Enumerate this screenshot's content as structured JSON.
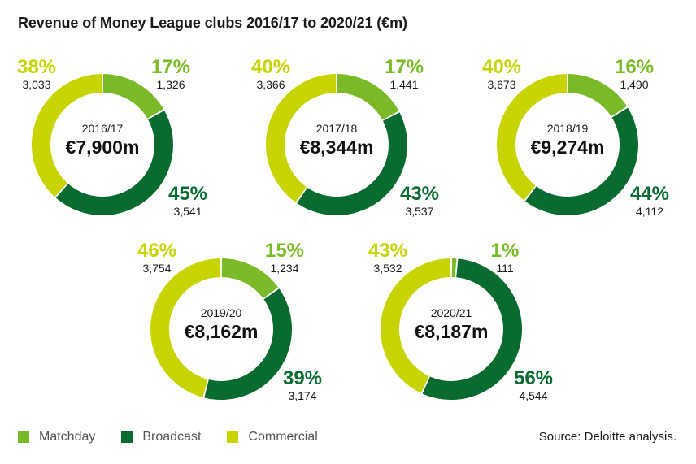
{
  "title": "Revenue of Money League clubs 2016/17 to 2020/21 (€m)",
  "colors": {
    "matchday": "#7aba28",
    "broadcast": "#0a6b31",
    "commercial": "#c8d400"
  },
  "legend": [
    {
      "label": "Matchday",
      "color": "#7aba28"
    },
    {
      "label": "Broadcast",
      "color": "#0a6b31"
    },
    {
      "label": "Commercial",
      "color": "#c8d400"
    }
  ],
  "source": "Source: Deloitte analysis.",
  "chart_data": [
    {
      "type": "pie",
      "year": "2016/17",
      "total": "€7,900m",
      "slices": [
        {
          "name": "Matchday",
          "value": 1326,
          "value_label": "1,326",
          "pct": "17%"
        },
        {
          "name": "Broadcast",
          "value": 3541,
          "value_label": "3,541",
          "pct": "45%"
        },
        {
          "name": "Commercial",
          "value": 3033,
          "value_label": "3,033",
          "pct": "38%"
        }
      ]
    },
    {
      "type": "pie",
      "year": "2017/18",
      "total": "€8,344m",
      "slices": [
        {
          "name": "Matchday",
          "value": 1441,
          "value_label": "1,441",
          "pct": "17%"
        },
        {
          "name": "Broadcast",
          "value": 3537,
          "value_label": "3,537",
          "pct": "43%"
        },
        {
          "name": "Commercial",
          "value": 3366,
          "value_label": "3,366",
          "pct": "40%"
        }
      ]
    },
    {
      "type": "pie",
      "year": "2018/19",
      "total": "€9,274m",
      "slices": [
        {
          "name": "Matchday",
          "value": 1490,
          "value_label": "1,490",
          "pct": "16%"
        },
        {
          "name": "Broadcast",
          "value": 4112,
          "value_label": "4,112",
          "pct": "44%"
        },
        {
          "name": "Commercial",
          "value": 3673,
          "value_label": "3,673",
          "pct": "40%"
        }
      ]
    },
    {
      "type": "pie",
      "year": "2019/20",
      "total": "€8,162m",
      "slices": [
        {
          "name": "Matchday",
          "value": 1234,
          "value_label": "1,234",
          "pct": "15%"
        },
        {
          "name": "Broadcast",
          "value": 3174,
          "value_label": "3,174",
          "pct": "39%"
        },
        {
          "name": "Commercial",
          "value": 3754,
          "value_label": "3,754",
          "pct": "46%"
        }
      ]
    },
    {
      "type": "pie",
      "year": "2020/21",
      "total": "€8,187m",
      "slices": [
        {
          "name": "Matchday",
          "value": 111,
          "value_label": "111",
          "pct": "1%"
        },
        {
          "name": "Broadcast",
          "value": 4544,
          "value_label": "4,544",
          "pct": "56%"
        },
        {
          "name": "Commercial",
          "value": 3532,
          "value_label": "3,532",
          "pct": "43%"
        }
      ]
    }
  ]
}
